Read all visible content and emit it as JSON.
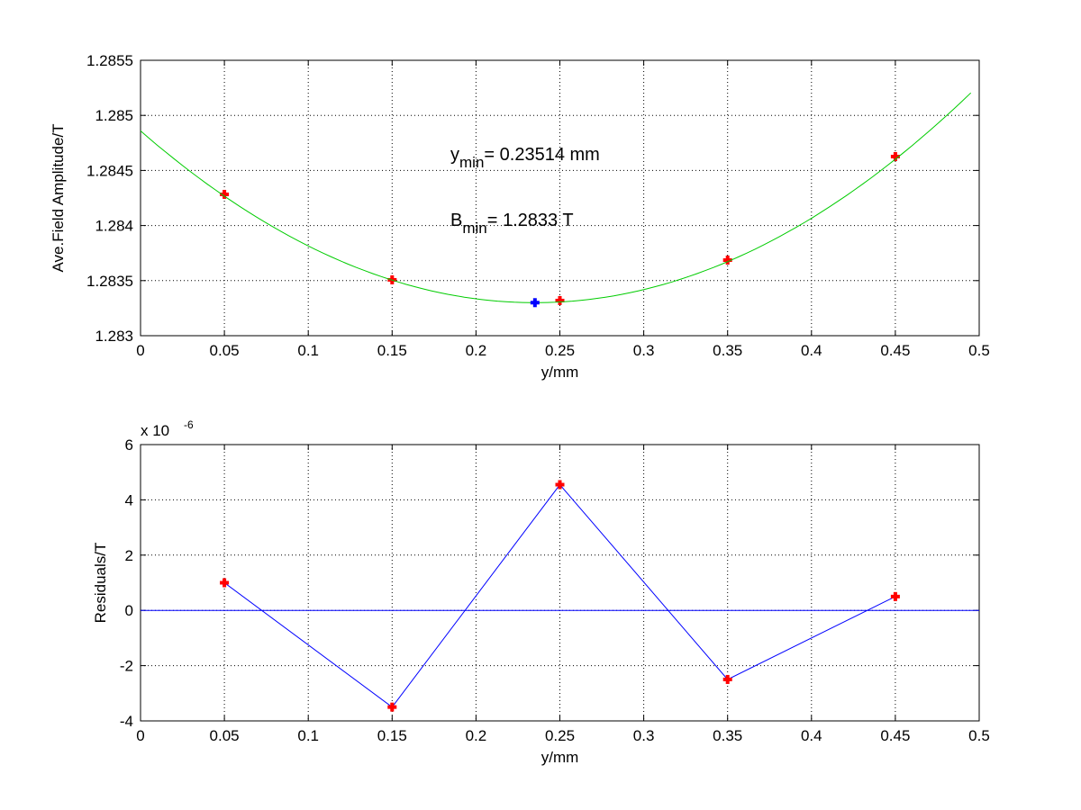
{
  "chart_data": [
    {
      "type": "scatter",
      "title": "",
      "xlabel": "y/mm",
      "ylabel": "Ave.Field Amplitude/T",
      "xlim": [
        0,
        0.5
      ],
      "ylim": [
        1.283,
        1.2855
      ],
      "xticks": [
        "0",
        "0.05",
        "0.1",
        "0.15",
        "0.2",
        "0.25",
        "0.3",
        "0.35",
        "0.4",
        "0.45",
        "0.5"
      ],
      "yticks": [
        "1.283",
        "1.2835",
        "1.284",
        "1.2845",
        "1.285",
        "1.2855"
      ],
      "grid": true,
      "series": [
        {
          "name": "measured",
          "marker": "plus",
          "color": "#ff0000",
          "x": [
            0.05,
            0.15,
            0.25,
            0.35,
            0.45
          ],
          "y": [
            1.284283,
            1.283507,
            1.283319,
            1.283686,
            1.284626
          ]
        },
        {
          "name": "fit",
          "type": "line",
          "color": "#00cc00",
          "model": "quadratic",
          "vertex_x": 0.23514,
          "vertex_y": 1.2833,
          "coef_a": 0.0282,
          "x_range": [
            0,
            0.495
          ]
        },
        {
          "name": "minimum",
          "marker": "plus",
          "color": "#0000ff",
          "x": [
            0.23514
          ],
          "y": [
            1.2833
          ]
        }
      ],
      "annotations": [
        {
          "main": "y",
          "sub": "min",
          "rest": "= 0.23514 mm"
        },
        {
          "main": "B",
          "sub": "min",
          "rest": "= 1.2833 T"
        }
      ]
    },
    {
      "type": "line",
      "title": "",
      "xlabel": "y/mm",
      "ylabel": "Residuals/T",
      "xlim": [
        0,
        0.5
      ],
      "ylim": [
        -4,
        6
      ],
      "scale_label": {
        "base": "x 10",
        "exp": "-6"
      },
      "xticks": [
        "0",
        "0.05",
        "0.1",
        "0.15",
        "0.2",
        "0.25",
        "0.3",
        "0.35",
        "0.4",
        "0.45",
        "0.5"
      ],
      "yticks": [
        "-4",
        "-2",
        "0",
        "2",
        "4",
        "6"
      ],
      "grid": true,
      "series": [
        {
          "name": "residuals",
          "marker": "plus",
          "color": "#ff0000",
          "line_color": "#0000ff",
          "x": [
            0.05,
            0.15,
            0.25,
            0.35,
            0.45
          ],
          "y": [
            1.0,
            -3.5,
            4.55,
            -2.5,
            0.5
          ]
        },
        {
          "name": "zero-line",
          "type": "hline",
          "color": "#0000ff",
          "y": 0
        }
      ]
    }
  ]
}
